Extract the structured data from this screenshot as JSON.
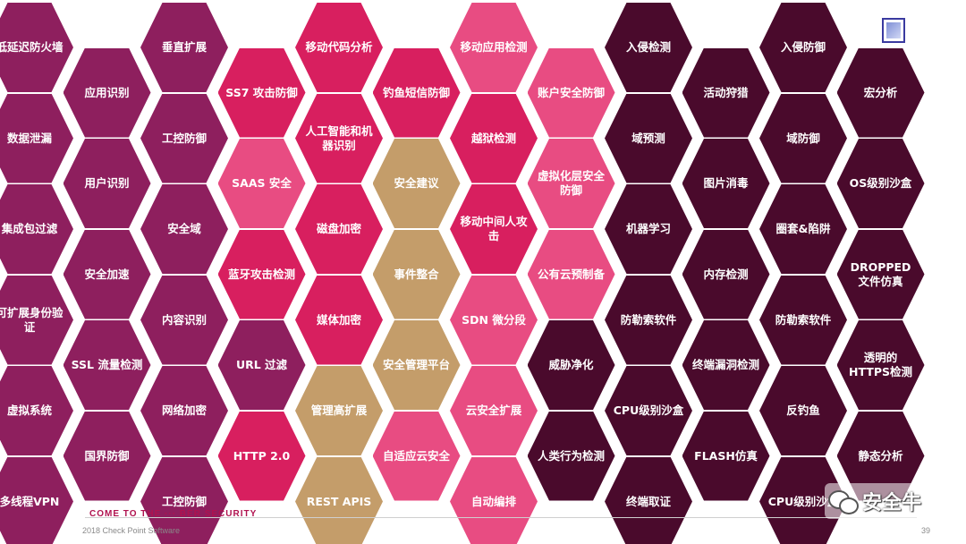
{
  "colors": {
    "purple": "#8e1f5e",
    "magenta": "#d81f5f",
    "pink": "#e84c82",
    "gold": "#c49d6a",
    "dark": "#4a0a2c"
  },
  "columns": [
    {
      "color": "purple",
      "offset": false,
      "cells": [
        "低延迟防火墙",
        "数据泄漏",
        "集成包过滤",
        "可扩展身份验证",
        "虚拟系统",
        "多线程VPN"
      ]
    },
    {
      "color": "purple",
      "offset": true,
      "cells": [
        "应用识别",
        "用户识别",
        "安全加速",
        "SSL 流量检测",
        "国界防御"
      ]
    },
    {
      "color": "purple",
      "offset": false,
      "cells": [
        "垂直扩展",
        "工控防御",
        "安全域",
        "内容识别",
        "网络加密",
        "工控防御"
      ]
    },
    {
      "color": "mixed_c4",
      "offset": true,
      "cells": [
        "SS7 攻击防御",
        "SAAS 安全",
        "蓝牙攻击检测",
        "URL 过滤",
        "HTTP 2.0"
      ]
    },
    {
      "color": "mixed_c5",
      "offset": false,
      "cells": [
        "移动代码分析",
        "人工智能和机器识别",
        "磁盘加密",
        "媒体加密",
        "管理高扩展",
        "REST APIS"
      ]
    },
    {
      "color": "mixed_c6",
      "offset": true,
      "cells": [
        "钓鱼短信防御",
        "安全建议",
        "事件整合",
        "安全管理平台",
        "自适应云安全"
      ]
    },
    {
      "color": "mixed_c7",
      "offset": false,
      "cells": [
        "移动应用检测",
        "越狱检测",
        "移动中间人攻击",
        "SDN 微分段",
        "云安全扩展",
        "自动编排"
      ]
    },
    {
      "color": "mixed_c8",
      "offset": true,
      "cells": [
        "账户安全防御",
        "虚拟化层安全防御",
        "公有云预制备",
        "威胁净化",
        "人类行为检测"
      ]
    },
    {
      "color": "dark",
      "offset": false,
      "cells": [
        "入侵检测",
        "域预测",
        "机器学习",
        "防勒索软件",
        "CPU级别沙盒",
        "终端取证"
      ]
    },
    {
      "color": "dark",
      "offset": true,
      "cells": [
        "活动狩猎",
        "图片消毒",
        "内存检测",
        "终端漏洞检测",
        "FLASH仿真"
      ]
    },
    {
      "color": "dark",
      "offset": false,
      "cells": [
        "入侵防御",
        "域防御",
        "圈套&陷阱",
        "防勒索软件",
        "反钓鱼",
        "CPU级别沙盒"
      ]
    },
    {
      "color": "dark",
      "offset": true,
      "cells": [
        "宏分析",
        "OS级别沙盒",
        "DROPPED 文件仿真",
        "透明的HTTPS检测",
        "静态分析"
      ]
    }
  ],
  "cell_colors": {
    "mixed_c4": [
      "magenta",
      "pink",
      "magenta",
      "purple",
      "magenta"
    ],
    "mixed_c5": [
      "magenta",
      "magenta",
      "magenta",
      "magenta",
      "gold",
      "gold"
    ],
    "mixed_c6": [
      "magenta",
      "gold",
      "gold",
      "gold",
      "pink"
    ],
    "mixed_c7": [
      "pink",
      "magenta",
      "magenta",
      "pink",
      "pink",
      "pink"
    ],
    "mixed_c8": [
      "pink",
      "pink",
      "pink",
      "dark",
      "dark"
    ]
  },
  "footer": {
    "welcome": "COME TO THE ··· BER SECURITY",
    "copyright": "2018 Check Point Software",
    "page_number": "39"
  },
  "watermark": {
    "text": "安全牛",
    "icon": "wechat-icon"
  },
  "logo": {
    "icon": "badge-logo-icon"
  }
}
